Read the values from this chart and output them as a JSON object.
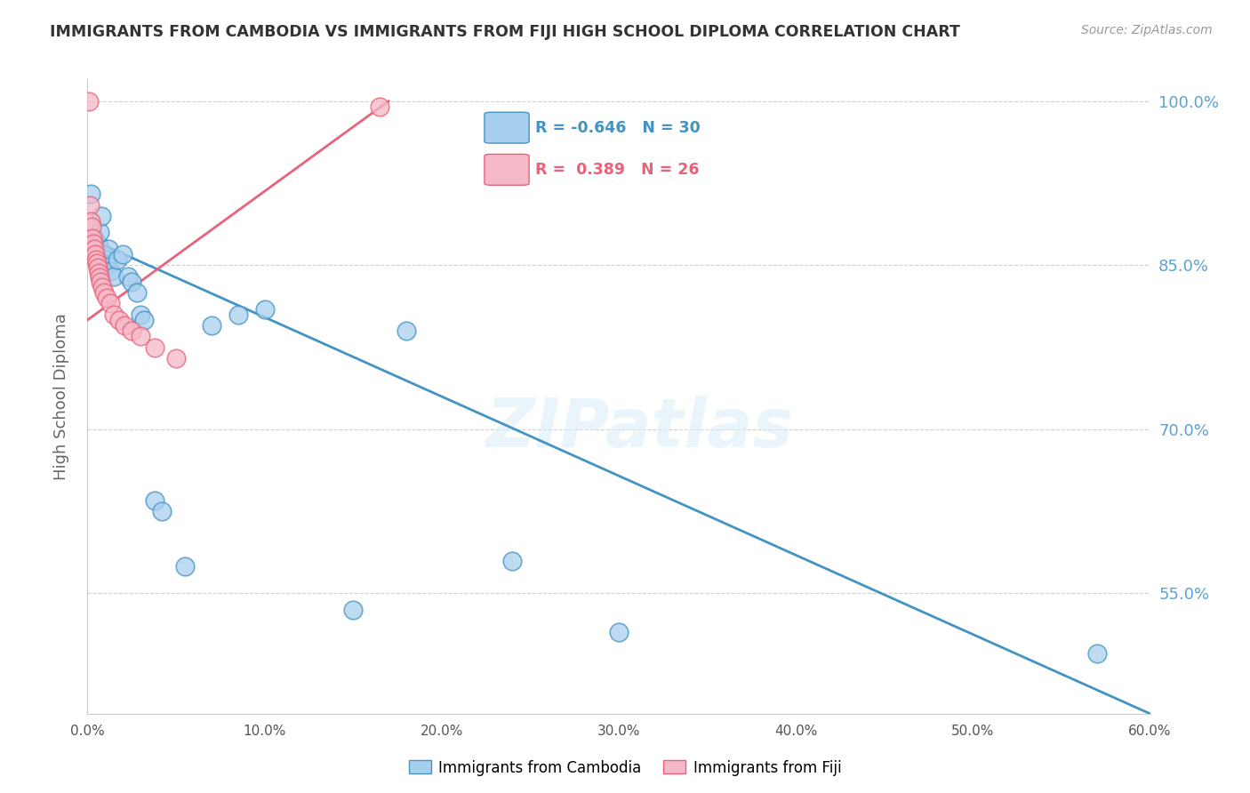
{
  "title": "IMMIGRANTS FROM CAMBODIA VS IMMIGRANTS FROM FIJI HIGH SCHOOL DIPLOMA CORRELATION CHART",
  "source": "Source: ZipAtlas.com",
  "ylabel": "High School Diploma",
  "xlim": [
    0.0,
    60.0
  ],
  "ylim": [
    44.0,
    102.0
  ],
  "yticks": [
    55.0,
    70.0,
    85.0,
    100.0
  ],
  "xticks": [
    0.0,
    10.0,
    20.0,
    30.0,
    40.0,
    50.0,
    60.0
  ],
  "legend_cambodia": "Immigrants from Cambodia",
  "legend_fiji": "Immigrants from Fiji",
  "R_cambodia": "-0.646",
  "N_cambodia": "30",
  "R_fiji": "0.389",
  "N_fiji": "26",
  "color_cambodia": "#a8d0ee",
  "color_fiji": "#f5b8c8",
  "line_color_cambodia": "#4393c3",
  "line_color_fiji": "#e8637a",
  "watermark": "ZIPatlas",
  "background_color": "#ffffff",
  "grid_color": "#d0d0d0",
  "right_axis_color": "#5ba3d0",
  "title_color": "#333333",
  "cambodia_x": [
    0.2,
    0.4,
    0.5,
    0.6,
    0.7,
    0.8,
    0.9,
    1.0,
    1.1,
    1.2,
    1.3,
    1.5,
    1.7,
    2.0,
    2.3,
    2.5,
    2.8,
    3.0,
    3.2,
    3.8,
    4.2,
    5.5,
    7.0,
    8.5,
    10.0,
    15.0,
    18.0,
    24.0,
    30.0,
    57.0
  ],
  "cambodia_y": [
    91.5,
    87.5,
    86.5,
    87.0,
    88.0,
    89.5,
    86.0,
    85.5,
    85.0,
    86.5,
    84.5,
    84.0,
    85.5,
    86.0,
    84.0,
    83.5,
    82.5,
    80.5,
    80.0,
    63.5,
    62.5,
    57.5,
    79.5,
    80.5,
    81.0,
    53.5,
    79.0,
    58.0,
    51.5,
    49.5
  ],
  "fiji_x": [
    0.1,
    0.15,
    0.18,
    0.22,
    0.28,
    0.32,
    0.38,
    0.42,
    0.48,
    0.52,
    0.58,
    0.62,
    0.68,
    0.75,
    0.85,
    0.95,
    1.1,
    1.3,
    1.5,
    1.8,
    2.1,
    2.5,
    3.0,
    3.8,
    5.0,
    16.5
  ],
  "fiji_y": [
    100.0,
    90.5,
    89.0,
    88.5,
    87.5,
    87.0,
    86.5,
    86.0,
    85.5,
    85.2,
    84.8,
    84.3,
    83.9,
    83.5,
    83.0,
    82.5,
    82.0,
    81.5,
    80.5,
    80.0,
    79.5,
    79.0,
    78.5,
    77.5,
    76.5,
    99.5
  ],
  "cam_line_x0": 0.0,
  "cam_line_y0": 87.5,
  "cam_line_x1": 60.0,
  "cam_line_y1": 44.0,
  "fiji_line_x0": 0.0,
  "fiji_line_y0": 80.0,
  "fiji_line_x1": 17.0,
  "fiji_line_y1": 100.0
}
